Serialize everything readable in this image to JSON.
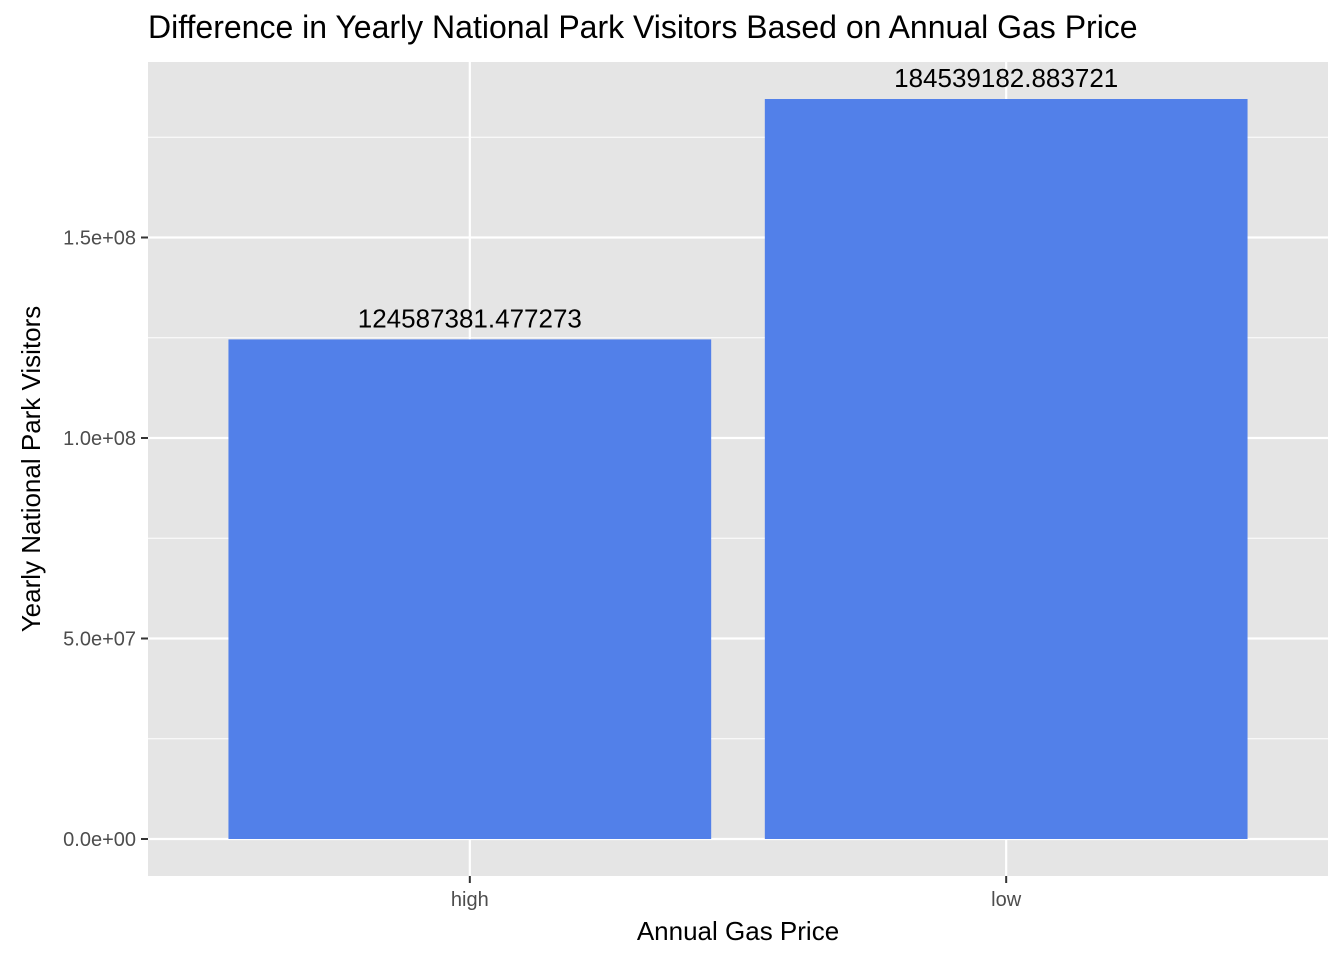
{
  "chart_data": {
    "type": "bar",
    "title": "Difference in Yearly National Park Visitors Based on Annual Gas Price",
    "xlabel": "Annual Gas Price",
    "ylabel": "Yearly National Park Visitors",
    "categories": [
      "high",
      "low"
    ],
    "values": [
      124587381.477273,
      184539182.883721
    ],
    "data_labels": [
      "124587381.477273",
      "184539182.883721"
    ],
    "ylim": [
      -9227000,
      193766000
    ],
    "y_ticks": [
      0,
      50000000,
      100000000,
      150000000
    ],
    "y_tick_labels": [
      "0.0e+00",
      "5.0e+07",
      "1.0e+08",
      "1.5e+08"
    ],
    "grid": true,
    "legend": "none",
    "colors": {
      "bar": "#5280E9",
      "panel": "#E5E5E5",
      "grid": "#FFFFFF",
      "tick": "#333333"
    }
  }
}
